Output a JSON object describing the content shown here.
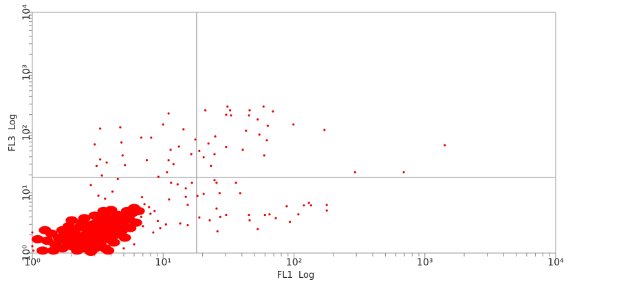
{
  "chart_data": {
    "type": "scatter",
    "title": "",
    "xlabel": "FL1  Log",
    "ylabel": "FL3  Log",
    "xscale": "log",
    "yscale": "log",
    "xlim": [
      1,
      10000
    ],
    "ylim": [
      1,
      10000
    ],
    "grid": false,
    "x_ticks": [
      1,
      10,
      100,
      1000,
      10000
    ],
    "y_ticks": [
      1,
      10,
      100,
      1000,
      10000
    ],
    "x_tick_labels": [
      "10⁰",
      "10¹",
      "10²",
      "10³",
      "10⁴"
    ],
    "y_tick_labels": [
      "10⁰",
      "10¹",
      "10²",
      "10³",
      "10⁴"
    ],
    "quadrant_gates": {
      "x": 18,
      "y": 18,
      "color": "#a0a0a0"
    },
    "point_color": "#e60000",
    "dense_population": [
      [
        1.3,
        1.6
      ],
      [
        1.4,
        2.1
      ],
      [
        1.5,
        1.4
      ],
      [
        1.6,
        1.8
      ],
      [
        1.7,
        2.4
      ],
      [
        1.7,
        1.2
      ],
      [
        1.8,
        1.6
      ],
      [
        1.9,
        2.0
      ],
      [
        1.9,
        2.8
      ],
      [
        2.0,
        1.3
      ],
      [
        2.0,
        1.7
      ],
      [
        2.1,
        2.3
      ],
      [
        2.2,
        1.1
      ],
      [
        2.2,
        1.5
      ],
      [
        2.3,
        1.9
      ],
      [
        2.3,
        2.7
      ],
      [
        2.4,
        3.2
      ],
      [
        2.5,
        1.2
      ],
      [
        2.5,
        1.6
      ],
      [
        2.6,
        2.1
      ],
      [
        2.7,
        2.5
      ],
      [
        2.7,
        1.4
      ],
      [
        2.8,
        1.9
      ],
      [
        2.9,
        3.0
      ],
      [
        3.0,
        1.2
      ],
      [
        3.0,
        1.6
      ],
      [
        3.1,
        2.2
      ],
      [
        3.2,
        2.7
      ],
      [
        3.2,
        3.5
      ],
      [
        3.3,
        1.4
      ],
      [
        3.4,
        1.9
      ],
      [
        3.5,
        2.4
      ],
      [
        3.6,
        3.0
      ],
      [
        3.6,
        1.2
      ],
      [
        3.7,
        4.0
      ],
      [
        3.8,
        1.7
      ],
      [
        3.9,
        2.2
      ],
      [
        4.0,
        2.8
      ],
      [
        4.1,
        3.5
      ],
      [
        4.2,
        1.5
      ],
      [
        4.3,
        2.0
      ],
      [
        4.4,
        2.6
      ],
      [
        4.5,
        4.3
      ],
      [
        4.6,
        3.3
      ],
      [
        4.8,
        2.3
      ],
      [
        4.9,
        3.0
      ],
      [
        5.0,
        4.0
      ],
      [
        5.1,
        1.8
      ],
      [
        5.3,
        5.0
      ],
      [
        5.5,
        3.6
      ],
      [
        5.6,
        2.6
      ],
      [
        5.8,
        4.6
      ],
      [
        6.0,
        5.6
      ],
      [
        6.2,
        3.2
      ],
      [
        6.5,
        5.0
      ],
      [
        2.0,
        3.5
      ],
      [
        2.5,
        3.8
      ],
      [
        3.0,
        4.2
      ],
      [
        1.2,
        1.1
      ],
      [
        1.1,
        1.7
      ],
      [
        1.25,
        2.4
      ],
      [
        1.45,
        1.1
      ],
      [
        3.5,
        5.0
      ],
      [
        4.0,
        5.2
      ],
      [
        2.8,
        1.05
      ],
      [
        3.8,
        1.1
      ]
    ],
    "points": [
      [
        3.3,
        117
      ],
      [
        4.7,
        123
      ],
      [
        3.0,
        64
      ],
      [
        4.8,
        69
      ],
      [
        3.3,
        36
      ],
      [
        4.9,
        42
      ],
      [
        6.8,
        83
      ],
      [
        8.1,
        83
      ],
      [
        11,
        209
      ],
      [
        10,
        137
      ],
      [
        11.4,
        52
      ],
      [
        13.2,
        59
      ],
      [
        17.6,
        77
      ],
      [
        18.9,
        50
      ],
      [
        21,
        235
      ],
      [
        30.3,
        199
      ],
      [
        33,
        194
      ],
      [
        45.8,
        235
      ],
      [
        52.8,
        166
      ],
      [
        58.5,
        272
      ],
      [
        69,
        226
      ],
      [
        63,
        130
      ],
      [
        43,
        108
      ],
      [
        30.3,
        58
      ],
      [
        25,
        87
      ],
      [
        20.4,
        39
      ],
      [
        11,
        35
      ],
      [
        10.7,
        22
      ],
      [
        7.5,
        35
      ],
      [
        9.2,
        18.5
      ],
      [
        3.1,
        28
      ],
      [
        3.7,
        32
      ],
      [
        5.1,
        29
      ],
      [
        4.5,
        17
      ],
      [
        3.4,
        19.5
      ],
      [
        3.6,
        8.0
      ],
      [
        2.8,
        13.5
      ],
      [
        14.3,
        114
      ],
      [
        12,
        30
      ],
      [
        16.4,
        44
      ],
      [
        23.2,
        28
      ],
      [
        40.6,
        52
      ],
      [
        62,
        75
      ],
      [
        59.2,
        42
      ],
      [
        31,
        272
      ],
      [
        32.5,
        235
      ],
      [
        45.3,
        194
      ],
      [
        22.2,
        66
      ],
      [
        24.7,
        44
      ],
      [
        54.4,
        93
      ],
      [
        24.7,
        16.3
      ],
      [
        27,
        9.9
      ],
      [
        11.5,
        14.7
      ],
      [
        12.9,
        13.9
      ],
      [
        16.6,
        14.7
      ],
      [
        14.9,
        11.9
      ],
      [
        11.1,
        7.8
      ],
      [
        8.6,
        5.0
      ],
      [
        9.1,
        3.4
      ],
      [
        25.6,
        14.7
      ],
      [
        36,
        14.7
      ],
      [
        38.8,
        9.9
      ],
      [
        20.4,
        9.6
      ],
      [
        25.6,
        5.5
      ],
      [
        30.3,
        4.3
      ],
      [
        45.3,
        4.3
      ],
      [
        52.8,
        2.5
      ],
      [
        60,
        4.3
      ],
      [
        88,
        6.0
      ],
      [
        130,
        6.8
      ],
      [
        108,
        4.4
      ],
      [
        65,
        4.4
      ],
      [
        178,
        6.3
      ],
      [
        178,
        5.1
      ],
      [
        119,
        6.2
      ],
      [
        72.6,
        3.8
      ],
      [
        135,
        6.2
      ],
      [
        93,
        3.3
      ],
      [
        15.4,
        2.9
      ],
      [
        13.5,
        3.1
      ],
      [
        18.9,
        3.9
      ],
      [
        22.7,
        3.5
      ],
      [
        26,
        2.3
      ],
      [
        27.3,
        4.0
      ],
      [
        45.8,
        3.5
      ],
      [
        15.4,
        6.3
      ],
      [
        18.3,
        8.9
      ],
      [
        14.9,
        8.6
      ],
      [
        293,
        22
      ],
      [
        690,
        22
      ],
      [
        1420,
        62
      ],
      [
        171,
        111
      ],
      [
        99,
        137
      ],
      [
        1.0,
        1.3
      ],
      [
        1.0,
        2.2
      ],
      [
        1.05,
        1.7
      ],
      [
        1.02,
        1.1
      ],
      [
        7.2,
        6.5
      ],
      [
        7.8,
        5.8
      ],
      [
        8.0,
        4.5
      ],
      [
        6.8,
        4.0
      ],
      [
        7.0,
        2.8
      ],
      [
        9.5,
        2.6
      ],
      [
        10.5,
        3.0
      ],
      [
        8.4,
        2.2
      ],
      [
        6.0,
        1.4
      ],
      [
        5.0,
        1.2
      ],
      [
        3.2,
        9.0
      ],
      [
        4.1,
        10.5
      ],
      [
        6.9,
        8.5
      ]
    ]
  }
}
